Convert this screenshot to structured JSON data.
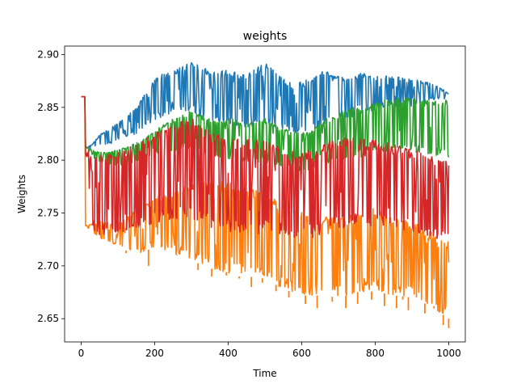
{
  "chart_data": {
    "type": "line",
    "title": "weights",
    "xlabel": "Time",
    "ylabel": "Weights",
    "xlim": [
      -45,
      1045
    ],
    "ylim": [
      2.628,
      2.908
    ],
    "xticks": [
      0,
      200,
      400,
      600,
      800,
      1000
    ],
    "yticks": [
      2.65,
      2.7,
      2.75,
      2.8,
      2.85,
      2.9
    ],
    "xtick_labels": [
      "0",
      "200",
      "400",
      "600",
      "800",
      "1000"
    ],
    "ytick_labels": [
      "2.65",
      "2.70",
      "2.75",
      "2.80",
      "2.85",
      "2.90"
    ],
    "grid": false,
    "legend": "none",
    "colors": [
      "#1f77b4",
      "#ff7f0e",
      "#2ca02c",
      "#d62728"
    ],
    "series": [
      {
        "color": "#1f77b4",
        "upper": [
          [
            0,
            2.86
          ],
          [
            10,
            2.86
          ],
          [
            12,
            2.812
          ],
          [
            30,
            2.815
          ],
          [
            50,
            2.824
          ],
          [
            100,
            2.835
          ],
          [
            150,
            2.85
          ],
          [
            200,
            2.878
          ],
          [
            230,
            2.884
          ],
          [
            260,
            2.886
          ],
          [
            300,
            2.893
          ],
          [
            330,
            2.888
          ],
          [
            360,
            2.884
          ],
          [
            400,
            2.886
          ],
          [
            440,
            2.881
          ],
          [
            480,
            2.888
          ],
          [
            500,
            2.893
          ],
          [
            540,
            2.88
          ],
          [
            580,
            2.872
          ],
          [
            620,
            2.877
          ],
          [
            660,
            2.885
          ],
          [
            700,
            2.881
          ],
          [
            720,
            2.878
          ],
          [
            760,
            2.883
          ],
          [
            800,
            2.881
          ],
          [
            860,
            2.879
          ],
          [
            900,
            2.877
          ],
          [
            940,
            2.874
          ],
          [
            970,
            2.871
          ],
          [
            1000,
            2.863
          ]
        ],
        "lower": [
          [
            0,
            2.86
          ],
          [
            10,
            2.86
          ],
          [
            12,
            2.812
          ],
          [
            30,
            2.809
          ],
          [
            60,
            2.812
          ],
          [
            100,
            2.818
          ],
          [
            150,
            2.825
          ],
          [
            200,
            2.838
          ],
          [
            230,
            2.842
          ],
          [
            260,
            2.845
          ],
          [
            300,
            2.847
          ],
          [
            330,
            2.84
          ],
          [
            360,
            2.836
          ],
          [
            400,
            2.833
          ],
          [
            440,
            2.83
          ],
          [
            480,
            2.832
          ],
          [
            500,
            2.835
          ],
          [
            540,
            2.83
          ],
          [
            580,
            2.826
          ],
          [
            620,
            2.826
          ],
          [
            660,
            2.834
          ],
          [
            700,
            2.838
          ],
          [
            720,
            2.838
          ],
          [
            760,
            2.842
          ],
          [
            800,
            2.848
          ],
          [
            860,
            2.851
          ],
          [
            900,
            2.851
          ],
          [
            940,
            2.855
          ],
          [
            970,
            2.858
          ],
          [
            1000,
            2.858
          ]
        ]
      },
      {
        "color": "#ff7f0e",
        "upper": [
          [
            0,
            2.86
          ],
          [
            10,
            2.86
          ],
          [
            12,
            2.738
          ],
          [
            50,
            2.742
          ],
          [
            100,
            2.74
          ],
          [
            150,
            2.755
          ],
          [
            200,
            2.765
          ],
          [
            250,
            2.77
          ],
          [
            300,
            2.778
          ],
          [
            350,
            2.78
          ],
          [
            400,
            2.78
          ],
          [
            450,
            2.775
          ],
          [
            500,
            2.768
          ],
          [
            550,
            2.76
          ],
          [
            600,
            2.752
          ],
          [
            650,
            2.747
          ],
          [
            700,
            2.745
          ],
          [
            750,
            2.75
          ],
          [
            800,
            2.755
          ],
          [
            850,
            2.748
          ],
          [
            900,
            2.742
          ],
          [
            950,
            2.733
          ],
          [
            1000,
            2.723
          ]
        ],
        "lower": [
          [
            0,
            2.86
          ],
          [
            10,
            2.86
          ],
          [
            12,
            2.738
          ],
          [
            50,
            2.725
          ],
          [
            100,
            2.718
          ],
          [
            150,
            2.71
          ],
          [
            200,
            2.718
          ],
          [
            250,
            2.712
          ],
          [
            300,
            2.705
          ],
          [
            350,
            2.698
          ],
          [
            400,
            2.69
          ],
          [
            450,
            2.69
          ],
          [
            500,
            2.688
          ],
          [
            550,
            2.678
          ],
          [
            600,
            2.672
          ],
          [
            650,
            2.672
          ],
          [
            700,
            2.67
          ],
          [
            750,
            2.675
          ],
          [
            800,
            2.676
          ],
          [
            850,
            2.672
          ],
          [
            900,
            2.67
          ],
          [
            950,
            2.662
          ],
          [
            1000,
            2.65
          ]
        ],
        "spikes": [
          [
            122,
            2.712
          ],
          [
            183,
            2.7
          ],
          [
            260,
            2.71
          ],
          [
            318,
            2.696
          ],
          [
            355,
            2.69
          ],
          [
            395,
            2.694
          ],
          [
            430,
            2.688
          ],
          [
            463,
            2.68
          ],
          [
            493,
            2.684
          ],
          [
            530,
            2.676
          ],
          [
            565,
            2.67
          ],
          [
            610,
            2.664
          ],
          [
            642,
            2.66
          ],
          [
            683,
            2.666
          ],
          [
            720,
            2.66
          ],
          [
            752,
            2.664
          ],
          [
            790,
            2.668
          ],
          [
            825,
            2.662
          ],
          [
            858,
            2.66
          ],
          [
            875,
            2.668
          ],
          [
            890,
            2.658
          ],
          [
            935,
            2.655
          ],
          [
            960,
            2.662
          ],
          [
            985,
            2.644
          ],
          [
            1000,
            2.641
          ]
        ]
      },
      {
        "color": "#2ca02c",
        "upper": [
          [
            0,
            2.86
          ],
          [
            10,
            2.86
          ],
          [
            12,
            2.813
          ],
          [
            40,
            2.808
          ],
          [
            80,
            2.808
          ],
          [
            120,
            2.812
          ],
          [
            160,
            2.818
          ],
          [
            200,
            2.828
          ],
          [
            240,
            2.838
          ],
          [
            280,
            2.843
          ],
          [
            300,
            2.848
          ],
          [
            330,
            2.842
          ],
          [
            360,
            2.838
          ],
          [
            400,
            2.84
          ],
          [
            440,
            2.837
          ],
          [
            480,
            2.836
          ],
          [
            500,
            2.84
          ],
          [
            540,
            2.832
          ],
          [
            580,
            2.826
          ],
          [
            620,
            2.828
          ],
          [
            660,
            2.838
          ],
          [
            700,
            2.845
          ],
          [
            720,
            2.848
          ],
          [
            760,
            2.852
          ],
          [
            800,
            2.855
          ],
          [
            840,
            2.858
          ],
          [
            880,
            2.86
          ],
          [
            920,
            2.858
          ],
          [
            960,
            2.856
          ],
          [
            1000,
            2.857
          ]
        ],
        "lower": [
          [
            0,
            2.86
          ],
          [
            10,
            2.86
          ],
          [
            12,
            2.813
          ],
          [
            40,
            2.8
          ],
          [
            80,
            2.795
          ],
          [
            120,
            2.795
          ],
          [
            160,
            2.8
          ],
          [
            200,
            2.806
          ],
          [
            240,
            2.808
          ],
          [
            280,
            2.81
          ],
          [
            300,
            2.812
          ],
          [
            330,
            2.806
          ],
          [
            360,
            2.803
          ],
          [
            400,
            2.8
          ],
          [
            440,
            2.797
          ],
          [
            480,
            2.796
          ],
          [
            500,
            2.798
          ],
          [
            540,
            2.793
          ],
          [
            580,
            2.79
          ],
          [
            620,
            2.79
          ],
          [
            660,
            2.795
          ],
          [
            700,
            2.8
          ],
          [
            720,
            2.8
          ],
          [
            760,
            2.803
          ],
          [
            800,
            2.806
          ],
          [
            840,
            2.808
          ],
          [
            880,
            2.808
          ],
          [
            920,
            2.806
          ],
          [
            960,
            2.804
          ],
          [
            1000,
            2.802
          ]
        ]
      },
      {
        "color": "#d62728",
        "upper": [
          [
            0,
            2.86
          ],
          [
            10,
            2.86
          ],
          [
            12,
            2.81
          ],
          [
            40,
            2.806
          ],
          [
            80,
            2.806
          ],
          [
            120,
            2.81
          ],
          [
            160,
            2.817
          ],
          [
            200,
            2.826
          ],
          [
            240,
            2.832
          ],
          [
            280,
            2.838
          ],
          [
            300,
            2.84
          ],
          [
            330,
            2.832
          ],
          [
            360,
            2.826
          ],
          [
            400,
            2.822
          ],
          [
            440,
            2.82
          ],
          [
            480,
            2.82
          ],
          [
            500,
            2.818
          ],
          [
            540,
            2.813
          ],
          [
            580,
            2.808
          ],
          [
            620,
            2.81
          ],
          [
            660,
            2.816
          ],
          [
            700,
            2.822
          ],
          [
            720,
            2.822
          ],
          [
            760,
            2.822
          ],
          [
            800,
            2.82
          ],
          [
            840,
            2.816
          ],
          [
            880,
            2.812
          ],
          [
            920,
            2.808
          ],
          [
            960,
            2.803
          ],
          [
            1000,
            2.799
          ]
        ],
        "lower": [
          [
            0,
            2.86
          ],
          [
            10,
            2.86
          ],
          [
            12,
            2.74
          ],
          [
            40,
            2.73
          ],
          [
            80,
            2.728
          ],
          [
            120,
            2.728
          ],
          [
            160,
            2.734
          ],
          [
            200,
            2.74
          ],
          [
            240,
            2.742
          ],
          [
            280,
            2.745
          ],
          [
            300,
            2.746
          ],
          [
            330,
            2.738
          ],
          [
            360,
            2.734
          ],
          [
            400,
            2.732
          ],
          [
            440,
            2.73
          ],
          [
            480,
            2.73
          ],
          [
            500,
            2.732
          ],
          [
            540,
            2.728
          ],
          [
            580,
            2.725
          ],
          [
            620,
            2.725
          ],
          [
            660,
            2.73
          ],
          [
            700,
            2.735
          ],
          [
            720,
            2.735
          ],
          [
            760,
            2.738
          ],
          [
            800,
            2.738
          ],
          [
            840,
            2.736
          ],
          [
            880,
            2.734
          ],
          [
            920,
            2.73
          ],
          [
            960,
            2.726
          ],
          [
            1000,
            2.724
          ]
        ]
      }
    ]
  }
}
